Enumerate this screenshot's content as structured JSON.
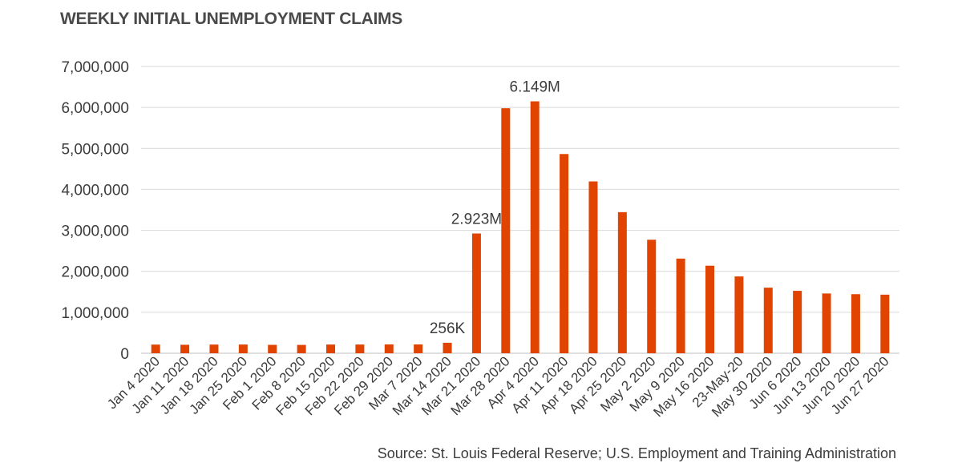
{
  "chart_data": {
    "type": "bar",
    "title": "WEEKLY INITIAL UNEMPLOYMENT CLAIMS",
    "xlabel": "",
    "ylabel": "",
    "ylim": [
      0,
      7000000
    ],
    "yticks": [
      "0",
      "1,000,000",
      "2,000,000",
      "3,000,000",
      "4,000,000",
      "5,000,000",
      "6,000,000",
      "7,000,000"
    ],
    "categories": [
      "Jan 4 2020",
      "Jan 11 2020",
      "Jan 18 2020",
      "Jan 25 2020",
      "Feb 1 2020",
      "Feb 8 2020",
      "Feb 15 2020",
      "Feb 22 2020",
      "Feb 29 2020",
      "Mar 7 2020",
      "Mar 14 2020",
      "Mar 21 2020",
      "Mar 28 2020",
      "Apr 4 2020",
      "Apr 11 2020",
      "Apr 18 2020",
      "Apr 25 2020",
      "May 2 2020",
      "May 9 2020",
      "May 16 2020",
      "23-May-20",
      "May 30 2020",
      "Jun 6 2020",
      "Jun 13 2020",
      "Jun 20 2020",
      "Jun 27 2020"
    ],
    "values": [
      211000,
      207000,
      212000,
      213000,
      205000,
      204000,
      213000,
      213000,
      216000,
      215000,
      256000,
      2923000,
      5981000,
      6149000,
      4863000,
      4194000,
      3444000,
      2771000,
      2310000,
      2137000,
      1875000,
      1601000,
      1524000,
      1459000,
      1442000,
      1430000
    ],
    "data_labels": [
      {
        "index": 10,
        "text": "256K"
      },
      {
        "index": 11,
        "text": "2.923M"
      },
      {
        "index": 13,
        "text": "6.149M"
      }
    ],
    "bar_color": "#e04400",
    "grid": true,
    "legend": "none",
    "source": "Source: St. Louis Federal Reserve; U.S. Employment and Training Administration"
  }
}
